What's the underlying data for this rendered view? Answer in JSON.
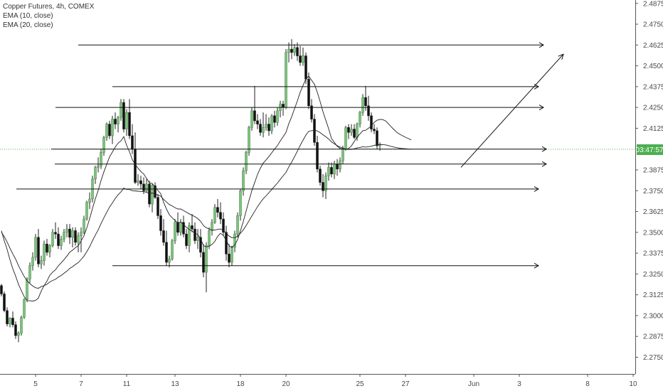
{
  "legend": {
    "symbol": "Copper Futures, 4h, COMEX",
    "ema10": "EMA (10, close)",
    "ema20": "EMA (20, close)"
  },
  "colors": {
    "up_candle": "#7ec27e",
    "down_candle": "#111111",
    "wick": "#222222",
    "ema": "#222222",
    "drawing": "#111111",
    "current_price_line": "#4caf50",
    "current_price_tag": "#4caf50",
    "axis_text": "#4a4a4a",
    "axis_line": "#555555"
  },
  "chart_data": {
    "type": "candlestick",
    "title": "Copper Futures, 4h, COMEX",
    "ylim": [
      2.2688,
      2.4938
    ],
    "y_ticks": [
      "2.4875",
      "2.4750",
      "2.4625",
      "2.4500",
      "2.4375",
      "2.4250",
      "2.4125",
      "2.4000",
      "2.3875",
      "2.3750",
      "2.3625",
      "2.3500",
      "2.3375",
      "2.3250",
      "2.3125",
      "2.3000",
      "2.2875",
      "2.2750"
    ],
    "x_ticks": [
      "5",
      "7",
      "11",
      "13",
      "18",
      "20",
      "25",
      "27",
      "Jun",
      "3",
      "8",
      "10"
    ],
    "x_tick_index": [
      12,
      28,
      44,
      61,
      84,
      100,
      126,
      142,
      166,
      182,
      206,
      222
    ],
    "current_price": 2.4016,
    "current_price_label": "03:47:57",
    "series": [
      {
        "name": "EMA (10, close)",
        "values": [
          2.351,
          2.3449,
          2.3398,
          2.3336,
          2.3281,
          2.3237,
          2.3188,
          2.315,
          2.3114,
          2.309,
          2.3089,
          2.3087,
          2.3091,
          2.3106,
          2.3148,
          2.318,
          2.3207,
          2.3242,
          2.3261,
          2.3275,
          2.3299,
          2.3317,
          2.3336,
          2.3357,
          2.3381,
          2.3393,
          2.3408,
          2.3419,
          2.3449,
          2.3479,
          2.3527,
          2.3581,
          2.3644,
          2.3701,
          2.3751,
          2.3811,
          2.3863,
          2.3908,
          2.3953,
          2.3982,
          2.4012,
          2.4036,
          2.4049,
          2.4075,
          2.4022,
          2.3984,
          2.3937,
          2.3908,
          2.3885,
          2.3865,
          2.385,
          2.3824,
          2.3797,
          2.3793,
          2.3772,
          2.3751,
          2.3732,
          2.368,
          2.364,
          2.3606,
          2.3588,
          2.3571,
          2.3557,
          2.3562,
          2.3547,
          2.3531,
          2.3517,
          2.3507,
          2.3496,
          2.3486,
          2.3462,
          2.342,
          2.3413,
          2.3416,
          2.3427,
          2.3446,
          2.3476,
          2.3494,
          2.3481,
          2.3452,
          2.3419,
          2.3409,
          2.3424,
          2.3456,
          2.3509,
          2.3565,
          2.3628,
          2.3691,
          2.375,
          2.3799,
          2.3847,
          2.3885,
          2.3916,
          2.3935,
          2.3955,
          2.3978,
          2.4,
          2.4021,
          2.4049,
          2.4074,
          2.41,
          2.4153,
          2.4194,
          2.4242,
          2.4289,
          2.4341,
          2.4382,
          2.4422,
          2.4438,
          2.4414,
          2.4389,
          2.4342,
          2.4285,
          2.4225,
          2.4173,
          2.4122,
          2.4063,
          2.4041,
          2.4017,
          2.4004,
          2.4001,
          2.3998,
          2.4004,
          2.4019,
          2.4046,
          2.4072,
          2.4091,
          2.411,
          2.4113,
          2.4125,
          2.4139,
          2.416,
          2.4173,
          2.4178,
          2.4177,
          2.4169,
          2.4152,
          2.4133,
          2.4116,
          2.41,
          2.4089,
          2.408,
          2.4071,
          2.4063,
          2.4055
        ]
      },
      {
        "name": "EMA (20, close)",
        "values": [
          2.35,
          2.3474,
          2.3442,
          2.3405,
          2.337,
          2.3339,
          2.33,
          2.3267,
          2.3235,
          2.3209,
          2.3192,
          2.3178,
          2.3167,
          2.3164,
          2.3174,
          2.318,
          2.3188,
          2.3202,
          2.3211,
          2.3218,
          2.3231,
          2.3241,
          2.3254,
          2.3267,
          2.3283,
          2.3294,
          2.3307,
          2.3318,
          2.3337,
          2.3357,
          2.3384,
          2.3414,
          2.345,
          2.3483,
          2.3515,
          2.3552,
          2.3587,
          2.362,
          2.3652,
          2.3677,
          2.3703,
          2.3726,
          2.3743,
          2.3765,
          2.3758,
          2.3758,
          2.375,
          2.3749,
          2.3747,
          2.3745,
          2.3745,
          2.374,
          2.3733,
          2.3736,
          2.373,
          2.3724,
          2.3717,
          2.3698,
          2.3682,
          2.3667,
          2.3659,
          2.3648,
          2.364,
          2.364,
          2.3631,
          2.3621,
          2.3611,
          2.3603,
          2.3594,
          2.3583,
          2.3566,
          2.3541,
          2.3528,
          2.352,
          2.3514,
          2.3513,
          2.3518,
          2.352,
          2.3511,
          2.3495,
          2.3477,
          2.3468,
          2.3468,
          2.3476,
          2.3494,
          2.3515,
          2.3541,
          2.3569,
          2.3598,
          2.3626,
          2.3654,
          2.3679,
          2.3701,
          2.3719,
          2.3738,
          2.3758,
          2.3777,
          2.3796,
          2.3818,
          2.3839,
          2.386,
          2.3893,
          2.3922,
          2.3954,
          2.3987,
          2.4022,
          2.4054,
          2.4084,
          2.4107,
          2.411,
          2.4113,
          2.4109,
          2.4099,
          2.4086,
          2.4074,
          2.406,
          2.4043,
          2.4032,
          2.4021,
          2.4012,
          2.4006,
          2.4,
          2.3998,
          2.3998,
          2.4002,
          2.4007,
          2.401,
          2.4014,
          2.4012,
          2.4014,
          2.4017,
          2.4022,
          2.4025,
          2.4027,
          2.4027,
          2.4025,
          2.4021,
          2.4016,
          2.4012,
          2.4008,
          2.4005,
          2.4003,
          2.4002,
          2.4,
          2.3999
        ]
      }
    ],
    "candles": [
      [
        2.318,
        2.319,
        2.3115,
        2.313
      ],
      [
        2.313,
        2.3145,
        2.302,
        2.303
      ],
      [
        2.303,
        2.305,
        2.2935,
        2.295
      ],
      [
        2.295,
        2.299,
        2.293,
        2.2985
      ],
      [
        2.2985,
        2.3025,
        2.293,
        2.2945
      ],
      [
        2.2945,
        2.2965,
        2.286,
        2.288
      ],
      [
        2.288,
        2.2905,
        2.284,
        2.2895
      ],
      [
        2.2895,
        2.3,
        2.288,
        2.299
      ],
      [
        2.299,
        2.3105,
        2.298,
        2.3095
      ],
      [
        2.3095,
        2.323,
        2.308,
        2.322
      ],
      [
        2.322,
        2.332,
        2.3195,
        2.33
      ],
      [
        2.33,
        2.338,
        2.327,
        2.335
      ],
      [
        2.335,
        2.349,
        2.333,
        2.347
      ],
      [
        2.347,
        2.352,
        2.329,
        2.331
      ],
      [
        2.331,
        2.336,
        2.328,
        2.333
      ],
      [
        2.333,
        2.345,
        2.33,
        2.343
      ],
      [
        2.343,
        2.346,
        2.336,
        2.338
      ],
      [
        2.338,
        2.343,
        2.335,
        2.342
      ],
      [
        2.342,
        2.352,
        2.341,
        2.35
      ],
      [
        2.35,
        2.356,
        2.346,
        2.349
      ],
      [
        2.349,
        2.353,
        2.34,
        2.342
      ],
      [
        2.342,
        2.348,
        2.3395,
        2.346
      ],
      [
        2.346,
        2.352,
        2.344,
        2.35
      ],
      [
        2.35,
        2.355,
        2.347,
        2.352
      ],
      [
        2.352,
        2.355,
        2.343,
        2.347
      ],
      [
        2.347,
        2.353,
        2.341,
        2.351
      ],
      [
        2.351,
        2.353,
        2.342,
        2.344
      ],
      [
        2.344,
        2.35,
        2.338,
        2.348
      ],
      [
        2.348,
        2.353,
        2.338,
        2.35
      ],
      [
        2.35,
        2.36,
        2.349,
        2.358
      ],
      [
        2.358,
        2.369,
        2.357,
        2.368
      ],
      [
        2.368,
        2.374,
        2.364,
        2.37
      ],
      [
        2.37,
        2.384,
        2.368,
        2.382
      ],
      [
        2.382,
        2.39,
        2.379,
        2.389
      ],
      [
        2.389,
        2.395,
        2.386,
        2.39
      ],
      [
        2.39,
        2.4,
        2.388,
        2.398
      ],
      [
        2.398,
        2.408,
        2.396,
        2.407
      ],
      [
        2.407,
        2.416,
        2.405,
        2.415
      ],
      [
        2.415,
        2.417,
        2.406,
        2.408
      ],
      [
        2.408,
        2.42,
        2.403,
        2.418
      ],
      [
        2.418,
        2.422,
        2.412,
        2.415
      ],
      [
        2.415,
        2.42,
        2.41,
        2.419
      ],
      [
        2.419,
        2.43,
        2.417,
        2.428
      ],
      [
        2.428,
        2.43,
        2.41,
        2.412
      ],
      [
        2.412,
        2.424,
        2.408,
        2.422
      ],
      [
        2.422,
        2.43,
        2.406,
        2.408
      ],
      [
        2.408,
        2.415,
        2.397,
        2.4
      ],
      [
        2.4,
        2.41,
        2.379,
        2.38
      ],
      [
        2.38,
        2.385,
        2.378,
        2.381
      ],
      [
        2.381,
        2.384,
        2.376,
        2.379
      ],
      [
        2.379,
        2.383,
        2.373,
        2.375
      ],
      [
        2.375,
        2.382,
        2.374,
        2.379
      ],
      [
        2.379,
        2.381,
        2.365,
        2.367
      ],
      [
        2.367,
        2.379,
        2.362,
        2.378
      ],
      [
        2.378,
        2.38,
        2.37,
        2.371
      ],
      [
        2.371,
        2.373,
        2.358,
        2.36
      ],
      [
        2.36,
        2.364,
        2.348,
        2.351
      ],
      [
        2.351,
        2.358,
        2.342,
        2.344
      ],
      [
        2.344,
        2.351,
        2.33,
        2.332
      ],
      [
        2.332,
        2.336,
        2.329,
        2.334
      ],
      [
        2.334,
        2.346,
        2.333,
        2.345
      ],
      [
        2.345,
        2.358,
        2.343,
        2.356
      ],
      [
        2.356,
        2.362,
        2.348,
        2.35
      ],
      [
        2.35,
        2.358,
        2.348,
        2.356
      ],
      [
        2.356,
        2.36,
        2.347,
        2.349
      ],
      [
        2.349,
        2.352,
        2.34,
        2.342
      ],
      [
        2.342,
        2.356,
        2.338,
        2.354
      ],
      [
        2.354,
        2.361,
        2.35,
        2.352
      ],
      [
        2.352,
        2.356,
        2.343,
        2.345
      ],
      [
        2.345,
        2.352,
        2.34,
        2.347
      ],
      [
        2.347,
        2.352,
        2.335,
        2.338
      ],
      [
        2.338,
        2.343,
        2.323,
        2.326
      ],
      [
        2.326,
        2.344,
        2.314,
        2.342
      ],
      [
        2.342,
        2.353,
        2.34,
        2.351
      ],
      [
        2.351,
        2.358,
        2.348,
        2.356
      ],
      [
        2.356,
        2.367,
        2.355,
        2.365
      ],
      [
        2.365,
        2.37,
        2.359,
        2.362
      ],
      [
        2.362,
        2.368,
        2.355,
        2.358
      ],
      [
        2.358,
        2.362,
        2.348,
        2.35
      ],
      [
        2.35,
        2.354,
        2.333,
        2.337
      ],
      [
        2.337,
        2.343,
        2.329,
        2.332
      ],
      [
        2.332,
        2.342,
        2.33,
        2.341
      ],
      [
        2.341,
        2.351,
        2.338,
        2.349
      ],
      [
        2.349,
        2.362,
        2.347,
        2.36
      ],
      [
        2.36,
        2.376,
        2.357,
        2.375
      ],
      [
        2.375,
        2.389,
        2.372,
        2.387
      ],
      [
        2.387,
        2.399,
        2.385,
        2.398
      ],
      [
        2.398,
        2.414,
        2.396,
        2.413
      ],
      [
        2.413,
        2.425,
        2.411,
        2.423
      ],
      [
        2.423,
        2.438,
        2.415,
        2.417
      ],
      [
        2.417,
        2.421,
        2.412,
        2.415
      ],
      [
        2.415,
        2.418,
        2.408,
        2.41
      ],
      [
        2.41,
        2.422,
        2.407,
        2.413
      ],
      [
        2.413,
        2.421,
        2.411,
        2.415
      ],
      [
        2.415,
        2.419,
        2.408,
        2.411
      ],
      [
        2.411,
        2.421,
        2.409,
        2.42
      ],
      [
        2.42,
        2.423,
        2.413,
        2.416
      ],
      [
        2.416,
        2.425,
        2.414,
        2.423
      ],
      [
        2.423,
        2.429,
        2.419,
        2.427
      ],
      [
        2.427,
        2.429,
        2.42,
        2.425
      ],
      [
        2.425,
        2.46,
        2.424,
        2.458
      ],
      [
        2.458,
        2.464,
        2.452,
        2.46
      ],
      [
        2.46,
        2.466,
        2.454,
        2.458
      ],
      [
        2.458,
        2.463,
        2.456,
        2.461
      ],
      [
        2.461,
        2.464,
        2.453,
        2.456
      ],
      [
        2.456,
        2.462,
        2.45,
        2.452
      ],
      [
        2.452,
        2.461,
        2.45,
        2.456
      ],
      [
        2.456,
        2.458,
        2.439,
        2.442
      ],
      [
        2.442,
        2.446,
        2.424,
        2.426
      ],
      [
        2.426,
        2.43,
        2.416,
        2.418
      ],
      [
        2.418,
        2.421,
        2.402,
        2.404
      ],
      [
        2.404,
        2.408,
        2.386,
        2.388
      ],
      [
        2.388,
        2.39,
        2.378,
        2.38
      ],
      [
        2.38,
        2.385,
        2.371,
        2.375
      ],
      [
        2.375,
        2.386,
        2.37,
        2.384
      ],
      [
        2.384,
        2.392,
        2.381,
        2.389
      ],
      [
        2.389,
        2.392,
        2.383,
        2.385
      ],
      [
        2.385,
        2.393,
        2.382,
        2.391
      ],
      [
        2.391,
        2.394,
        2.384,
        2.388
      ],
      [
        2.388,
        2.395,
        2.386,
        2.393
      ],
      [
        2.393,
        2.402,
        2.391,
        2.4
      ],
      [
        2.4,
        2.414,
        2.399,
        2.413
      ],
      [
        2.413,
        2.415,
        2.406,
        2.41
      ],
      [
        2.41,
        2.415,
        2.408,
        2.412
      ],
      [
        2.412,
        2.415,
        2.406,
        2.407
      ],
      [
        2.407,
        2.416,
        2.405,
        2.415
      ],
      [
        2.415,
        2.423,
        2.413,
        2.422
      ],
      [
        2.422,
        2.433,
        2.42,
        2.431
      ],
      [
        2.431,
        2.438,
        2.423,
        2.426
      ],
      [
        2.426,
        2.432,
        2.417,
        2.42
      ],
      [
        2.42,
        2.422,
        2.41,
        2.412
      ],
      [
        2.412,
        2.415,
        2.409,
        2.411
      ],
      [
        2.411,
        2.413,
        2.4,
        2.402
      ],
      [
        2.402,
        2.404,
        2.399,
        2.403
      ]
    ],
    "drawings": {
      "horizontal_rays": [
        2.4625,
        2.4375,
        2.425,
        2.4,
        2.391,
        2.376,
        2.33
      ],
      "trend_arrow": {
        "from": [
          162,
          2.389
        ],
        "to": [
          198,
          2.457
        ]
      }
    }
  }
}
